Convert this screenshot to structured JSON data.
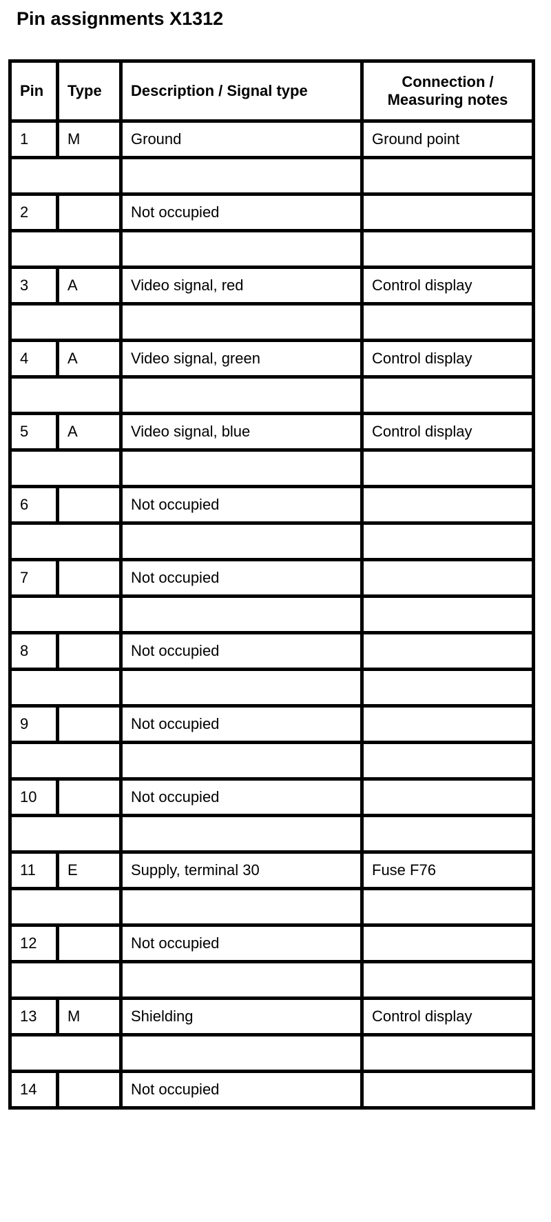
{
  "title": "Pin assignments X1312",
  "headers": [
    "Pin",
    "Type",
    "Description / Signal type",
    "Connection /",
    "Measuring notes"
  ],
  "rows": [
    {
      "pin": "1",
      "type": "M",
      "description": "Ground",
      "notes": "Ground point"
    },
    {
      "pin": "2",
      "type": "",
      "description": "Not occupied",
      "notes": ""
    },
    {
      "pin": "3",
      "type": "A",
      "description": "Video signal, red",
      "notes": "Control display"
    },
    {
      "pin": "4",
      "type": "A",
      "description": "Video signal, green",
      "notes": "Control display"
    },
    {
      "pin": "5",
      "type": "A",
      "description": "Video signal, blue",
      "notes": "Control display"
    },
    {
      "pin": "6",
      "type": "",
      "description": "Not occupied",
      "notes": ""
    },
    {
      "pin": "7",
      "type": "",
      "description": "Not occupied",
      "notes": ""
    },
    {
      "pin": "8",
      "type": "",
      "description": "Not occupied",
      "notes": ""
    },
    {
      "pin": "9",
      "type": "",
      "description": "Not occupied",
      "notes": ""
    },
    {
      "pin": "10",
      "type": "",
      "description": "Not occupied",
      "notes": ""
    },
    {
      "pin": "11",
      "type": "E",
      "description": "Supply, terminal 30",
      "notes": "Fuse F76"
    },
    {
      "pin": "12",
      "type": "",
      "description": "Not occupied",
      "notes": ""
    },
    {
      "pin": "13",
      "type": "M",
      "description": "Shielding",
      "notes": "Control display"
    },
    {
      "pin": "14",
      "type": "",
      "description": "Not occupied",
      "notes": ""
    }
  ]
}
